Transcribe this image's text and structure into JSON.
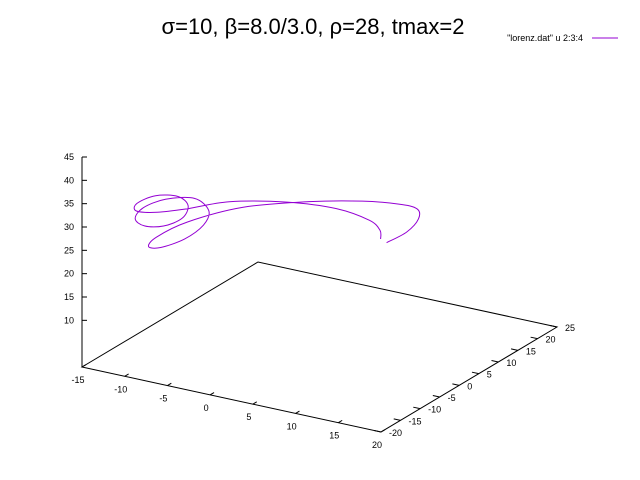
{
  "chart_data": {
    "type": "line",
    "title": "σ=10, β=8.0/3.0, ρ=28, tmax=2",
    "series": [
      {
        "name": "\"lorenz.dat\" u 2:3:4",
        "color": "#9400d3",
        "points": [
          [
            6.0,
            12.0,
            19.0
          ],
          [
            7.2,
            14.5,
            20.5
          ],
          [
            8.0,
            15.8,
            23.0
          ],
          [
            8.1,
            15.2,
            25.5
          ],
          [
            7.2,
            12.5,
            27.5
          ],
          [
            5.0,
            8.0,
            29.5
          ],
          [
            1.5,
            2.0,
            31.0
          ],
          [
            -3.0,
            -5.0,
            31.5
          ],
          [
            -7.0,
            -10.5,
            29.5
          ],
          [
            -9.5,
            -13.0,
            26.5
          ],
          [
            -10.5,
            -12.8,
            24.0
          ],
          [
            -10.0,
            -10.8,
            23.0
          ],
          [
            -8.5,
            -8.0,
            24.0
          ],
          [
            -7.2,
            -6.0,
            26.5
          ],
          [
            -6.8,
            -5.5,
            29.5
          ],
          [
            -7.8,
            -7.0,
            32.5
          ],
          [
            -9.8,
            -10.0,
            33.0
          ],
          [
            -11.5,
            -12.0,
            31.5
          ],
          [
            -12.3,
            -12.3,
            29.0
          ],
          [
            -11.8,
            -11.0,
            27.0
          ],
          [
            -10.5,
            -9.0,
            26.5
          ],
          [
            -9.0,
            -7.5,
            28.0
          ],
          [
            -8.3,
            -7.5,
            31.0
          ],
          [
            -8.8,
            -9.0,
            33.5
          ],
          [
            -10.5,
            -11.0,
            34.0
          ],
          [
            -12.0,
            -12.5,
            32.5
          ],
          [
            -12.3,
            -12.0,
            30.5
          ],
          [
            -11.0,
            -9.5,
            29.5
          ],
          [
            -9.0,
            -6.5,
            29.5
          ],
          [
            -6.0,
            -2.0,
            30.0
          ],
          [
            -2.0,
            4.0,
            28.5
          ],
          [
            1.5,
            9.0,
            26.0
          ],
          [
            4.0,
            12.0,
            23.0
          ],
          [
            5.0,
            12.5,
            21.0
          ],
          [
            5.3,
            12.0,
            19.5
          ]
        ]
      }
    ],
    "axes": {
      "x": {
        "range": [
          -15,
          20
        ],
        "ticks": [
          "-15",
          "-10",
          "-5",
          "0",
          "5",
          "10",
          "15",
          "20"
        ]
      },
      "y": {
        "range": [
          -20,
          25
        ],
        "ticks": [
          "-20",
          "-15",
          "-10",
          "-5",
          "0",
          "5",
          "10",
          "15",
          "20",
          "25"
        ]
      },
      "z": {
        "range": [
          0,
          45
        ],
        "ticks": [
          "10",
          "15",
          "20",
          "25",
          "30",
          "35",
          "40",
          "45"
        ]
      }
    },
    "grid": false,
    "legend_position": "top-right"
  }
}
